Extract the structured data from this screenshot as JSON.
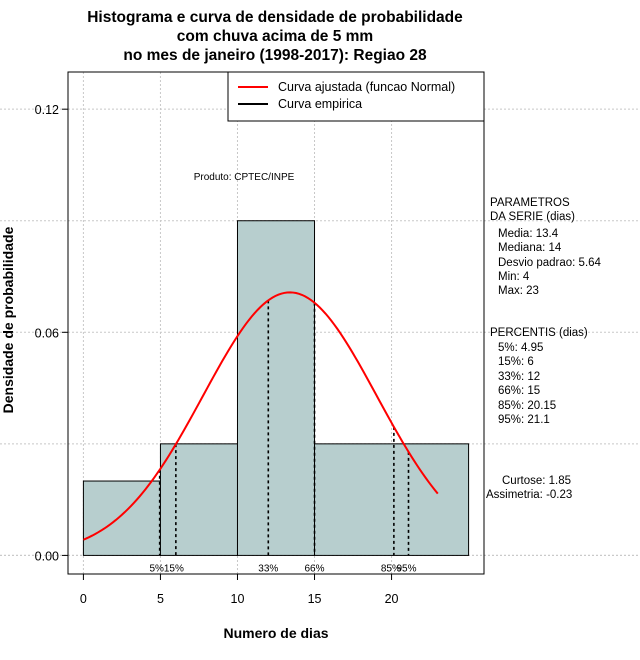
{
  "chart_data": {
    "type": "bar",
    "title_lines": [
      "Histograma e curva de densidade de probabilidade",
      "com chuva acima de 5 mm",
      "no mes de janeiro (1998-2017): Regiao 28"
    ],
    "xlabel": "Numero de dias",
    "ylabel": "Densidade de probabilidade",
    "xlim": [
      -1,
      26
    ],
    "ylim": [
      -0.005,
      0.13
    ],
    "x_ticks": [
      "0",
      "5",
      "10",
      "15",
      "20"
    ],
    "y_ticks": [
      "0.00",
      "0.06",
      "0.12"
    ],
    "bins": [
      {
        "start": 0,
        "end": 5,
        "density": 0.02
      },
      {
        "start": 5,
        "end": 10,
        "density": 0.03
      },
      {
        "start": 10,
        "end": 15,
        "density": 0.09
      },
      {
        "start": 15,
        "end": 25,
        "density": 0.03
      }
    ],
    "bar_color": "#b7cece",
    "normal_curve": {
      "mean": 13.4,
      "sd": 5.64,
      "x_from": 0,
      "x_to": 23,
      "color": "#ff0000"
    },
    "percentile_lines": [
      {
        "label": "5%",
        "x": 4.95
      },
      {
        "label": "15%",
        "x": 6
      },
      {
        "label": "33%",
        "x": 12
      },
      {
        "label": "66%",
        "x": 15
      },
      {
        "label": "85%",
        "x": 20.15
      },
      {
        "label": "95%",
        "x": 21.1
      }
    ],
    "legend": [
      {
        "label": "Curva ajustada (funcao Normal)",
        "color": "#ff0000"
      },
      {
        "label": "Curva empirica",
        "color": "#000000"
      }
    ],
    "product_label": "Produto: CPTEC/INPE",
    "parametros": {
      "title_line1": "PARAMETROS",
      "title_line2": "DA SERIE (dias)",
      "items": [
        "Media: 13.4",
        "Mediana: 14",
        "Desvio padrao: 5.64",
        "Min: 4",
        "Max: 23"
      ]
    },
    "percentis": {
      "title": "PERCENTIS (dias)",
      "items": [
        "5%: 4.95",
        "15%: 6",
        "33%: 12",
        "66%: 15",
        "85%: 20.15",
        "95%: 21.1"
      ]
    },
    "stats": [
      "Curtose: 1.85",
      "Assimetria: -0.23"
    ]
  }
}
